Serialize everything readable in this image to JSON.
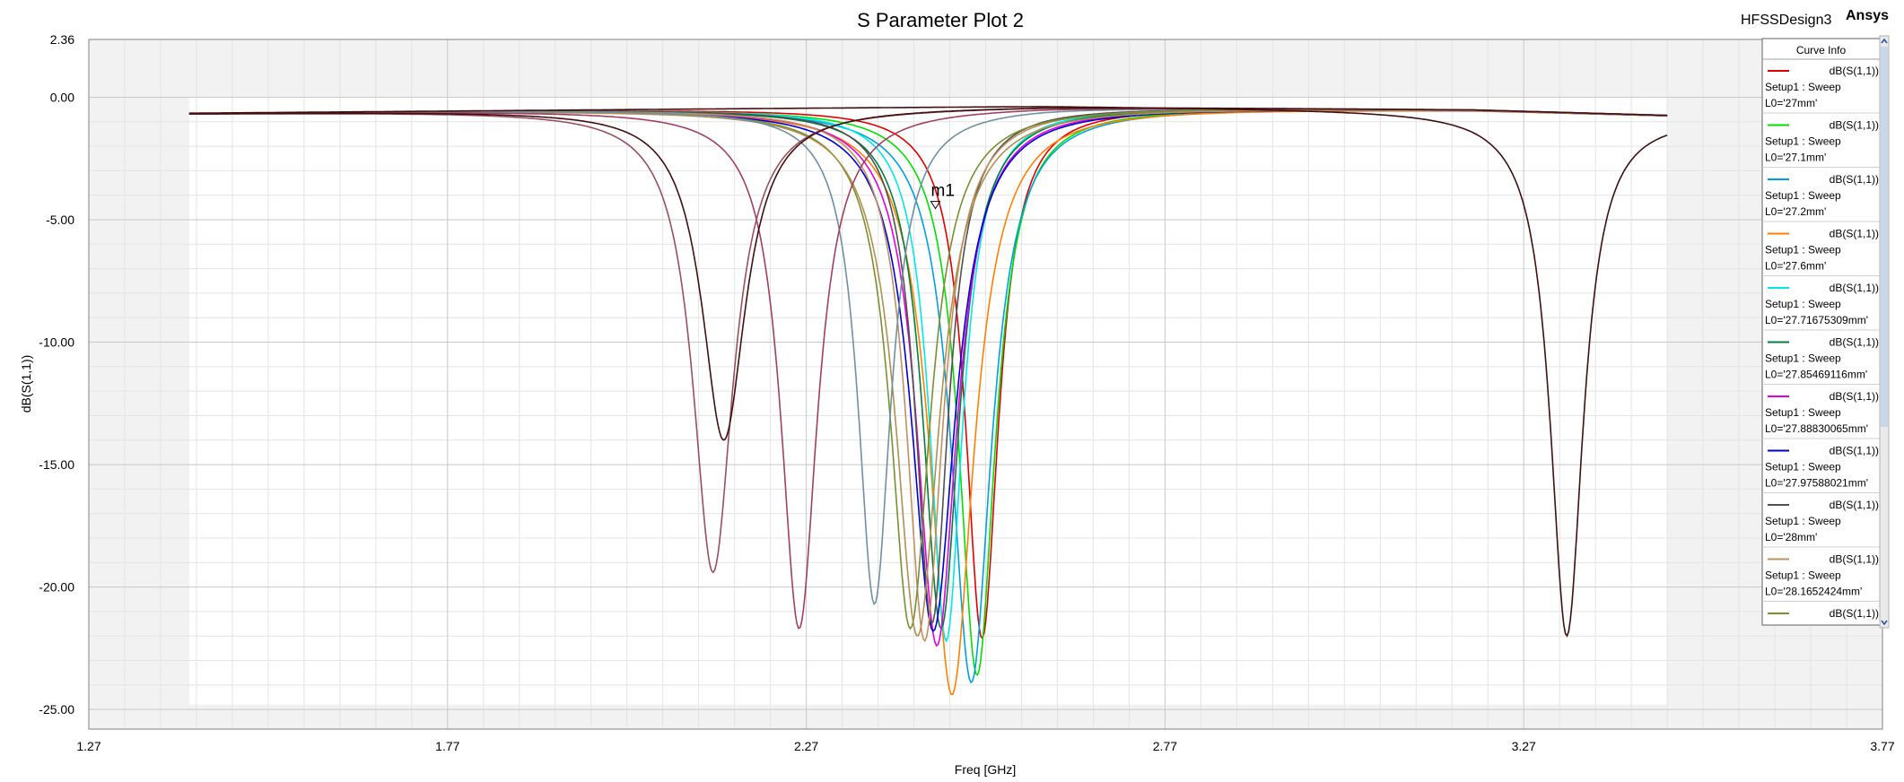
{
  "header": {
    "design_name": "HFSSDesign3",
    "brand": "Ansys"
  },
  "legend": {
    "title": "Curve Info"
  },
  "marker": {
    "label": "m1"
  },
  "colors": {
    "plot_background": "#f2f2f2",
    "grid_major": "#c8c8c8",
    "grid_minor": "#e4e4e4",
    "scrollbar": "#c9d7ea"
  },
  "chart_data": {
    "type": "line",
    "title": "S Parameter Plot 2",
    "xlabel": "Freq [GHz]",
    "ylabel": "dB(S(1,1))",
    "xlim": [
      1.27,
      3.77
    ],
    "ylim": [
      -25.8,
      2.36
    ],
    "x_ticks": [
      "1.27",
      "1.77",
      "2.27",
      "2.77",
      "3.27",
      "3.77"
    ],
    "y_ticks": [
      "2.36",
      "0.00",
      "-5.00",
      "-10.00",
      "-15.00",
      "-20.00",
      "-25.00"
    ],
    "grid": true,
    "legend_position": "right",
    "series": [
      {
        "name": "dB(S(1,1))",
        "setup": "Setup1 : Sweep",
        "param": "L0='27mm'",
        "color": "#e00000",
        "f0": 2.515,
        "min_db": -22.1
      },
      {
        "name": "dB(S(1,1))",
        "setup": "Setup1 : Sweep",
        "param": "L0='27.1mm'",
        "color": "#00e000",
        "f0": 2.508,
        "min_db": -23.6
      },
      {
        "name": "dB(S(1,1))",
        "setup": "Setup1 : Sweep",
        "param": "L0='27.2mm'",
        "color": "#00a0e0",
        "f0": 2.5,
        "min_db": -23.9
      },
      {
        "name": "dB(S(1,1))",
        "setup": "Setup1 : Sweep",
        "param": "L0='27.6mm'",
        "color": "#ff8000",
        "f0": 2.473,
        "min_db": -24.4
      },
      {
        "name": "dB(S(1,1))",
        "setup": "Setup1 : Sweep",
        "param": "L0='27.71675309mm'",
        "color": "#00e8e8",
        "f0": 2.465,
        "min_db": -22.2
      },
      {
        "name": "dB(S(1,1))",
        "setup": "Setup1 : Sweep",
        "param": "L0='27.85469116mm'",
        "color": "#008040",
        "f0": 2.458,
        "min_db": -21.7
      },
      {
        "name": "dB(S(1,1))",
        "setup": "Setup1 : Sweep",
        "param": "L0='27.88830065mm'",
        "color": "#e000e0",
        "f0": 2.452,
        "min_db": -22.4
      },
      {
        "name": "dB(S(1,1))",
        "setup": "Setup1 : Sweep",
        "param": "L0='27.97588021mm'",
        "color": "#0000d0",
        "f0": 2.447,
        "min_db": -21.8
      },
      {
        "name": "dB(S(1,1))",
        "setup": "Setup1 : Sweep",
        "param": "L0='28mm'",
        "color": "#505050",
        "f0": 2.445,
        "min_db": -21.5
      },
      {
        "name": "dB(S(1,1))",
        "setup": "Setup1 : Sweep",
        "param": "L0='28.1652424mm'",
        "color": "#c09060",
        "f0": 2.435,
        "min_db": -22.2
      },
      {
        "name": "dB(S(1,1))",
        "setup": "",
        "param": "",
        "color": "#789030",
        "f0": 2.415,
        "min_db": -21.7
      },
      {
        "name": "",
        "setup": "",
        "param": "",
        "color": "#b09050",
        "f0": 2.425,
        "min_db": -22.0
      },
      {
        "name": "",
        "setup": "",
        "param": "",
        "color": "#7090a0",
        "f0": 2.365,
        "min_db": -20.7
      },
      {
        "name": "",
        "setup": "",
        "param": "",
        "color": "#a04060",
        "f0": 2.26,
        "min_db": -21.7
      },
      {
        "name": "",
        "setup": "",
        "param": "",
        "color": "#985060",
        "f0": 2.14,
        "min_db": -19.4
      },
      {
        "name": "",
        "setup": "",
        "param": "",
        "color": "#401010",
        "f0": 2.155,
        "min_db": -14.0
      },
      {
        "name": "",
        "setup": "",
        "param": "",
        "color": "#401010",
        "f0": 3.33,
        "min_db": -22.0
      }
    ]
  }
}
